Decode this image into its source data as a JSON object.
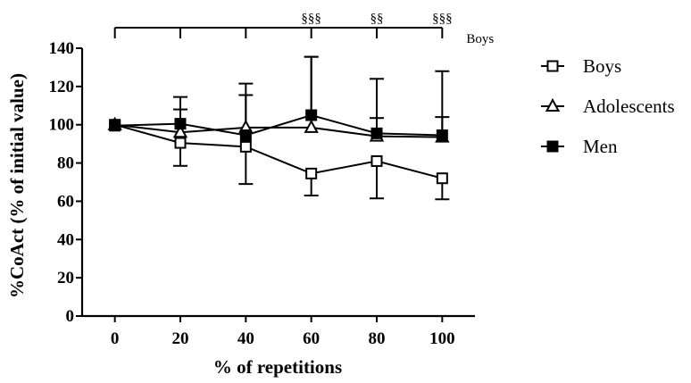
{
  "chart_data": {
    "type": "line",
    "title": "",
    "xlabel": "% of repetitions",
    "ylabel": "%CoAct (% of initial value)",
    "x": [
      0,
      20,
      40,
      60,
      80,
      100
    ],
    "xlim": [
      -10,
      110
    ],
    "ylim": [
      0,
      140
    ],
    "x_ticks": [
      0,
      20,
      40,
      60,
      80,
      100
    ],
    "y_ticks": [
      0,
      20,
      40,
      60,
      80,
      100,
      120,
      140
    ],
    "grid": false,
    "legend_position": "right",
    "series": [
      {
        "name": "Boys",
        "marker": "open-square",
        "values": [
          100,
          90.5,
          88.5,
          74.5,
          81,
          72
        ],
        "error": [
          0,
          12,
          19.5,
          11.5,
          19.5,
          11
        ]
      },
      {
        "name": "Adolescents",
        "marker": "open-triangle",
        "values": [
          100,
          96,
          98.5,
          98.5,
          94,
          93.5
        ],
        "error": [
          0,
          12,
          23,
          37,
          30,
          34.5
        ]
      },
      {
        "name": "Men",
        "marker": "filled-square",
        "values": [
          99.5,
          100.5,
          94.5,
          105,
          95.5,
          94.5
        ],
        "error": [
          0,
          14,
          21,
          30.5,
          8,
          9.5
        ]
      }
    ],
    "significance": {
      "group_label": "Boys",
      "bracket_x": [
        0,
        20,
        40,
        60,
        80,
        100
      ],
      "marks": [
        {
          "x": 60,
          "label": "§§§"
        },
        {
          "x": 80,
          "label": "§§"
        },
        {
          "x": 100,
          "label": "§§§"
        }
      ]
    }
  }
}
